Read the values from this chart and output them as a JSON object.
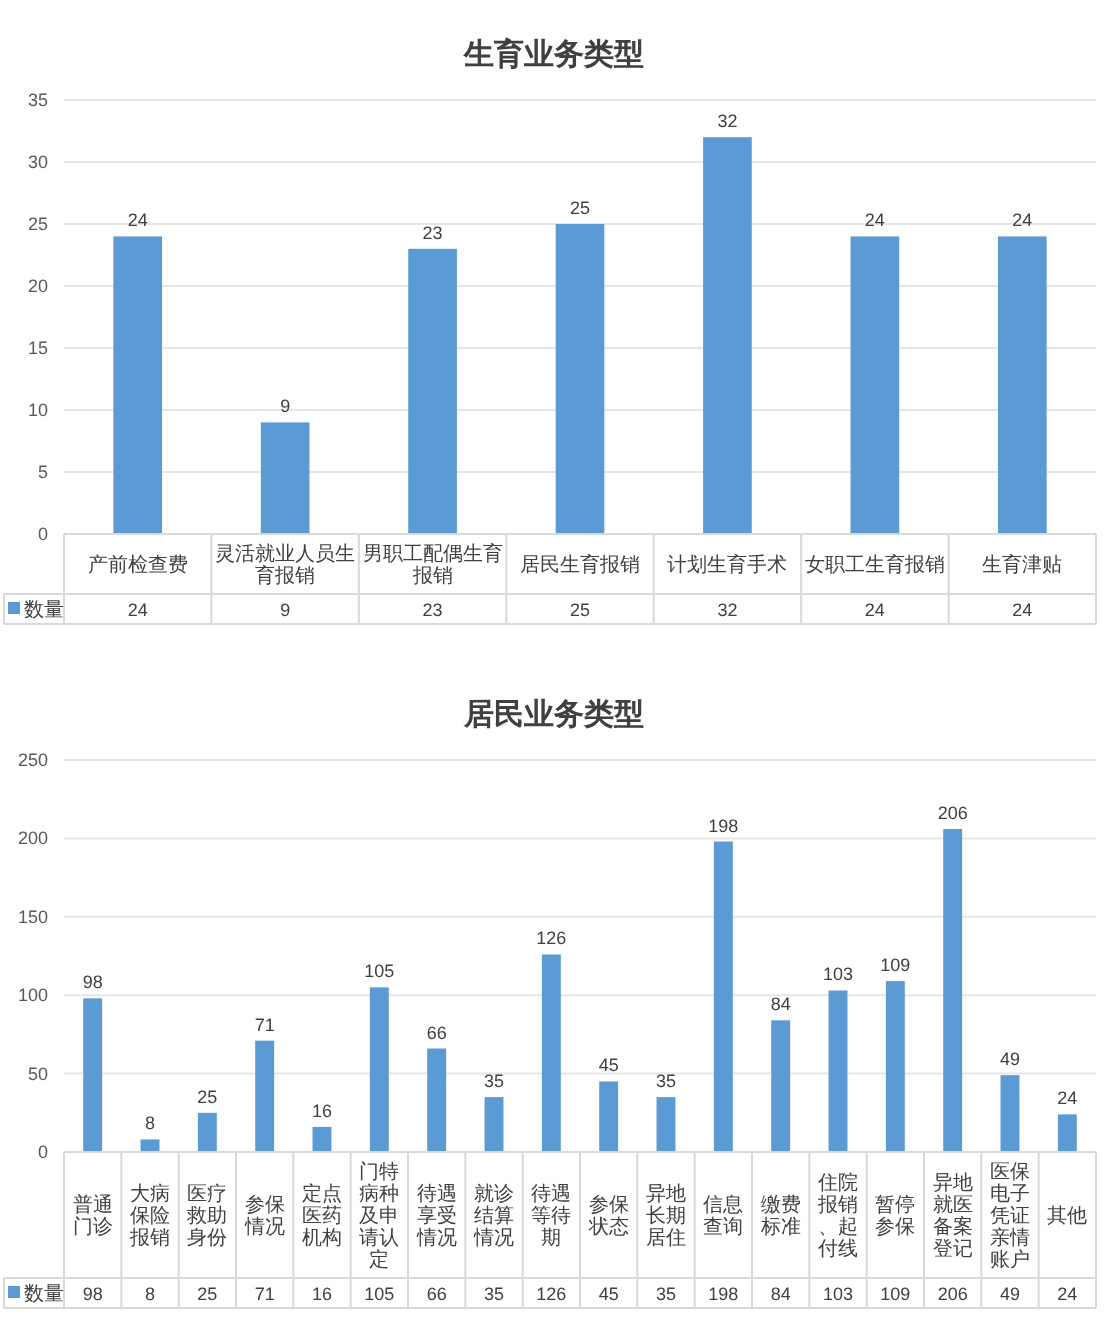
{
  "chart_data": [
    {
      "type": "bar",
      "title": "生育业务类型",
      "categories": [
        "产前检查费",
        "灵活就业人员生育报销",
        "男职工配偶生育报销",
        "居民生育报销",
        "计划生育手术",
        "女职工生育报销",
        "生育津贴"
      ],
      "series": [
        {
          "name": "数量",
          "color": "#5b9bd5",
          "values": [
            24,
            9,
            23,
            25,
            32,
            24,
            24
          ],
          "value_labels": [
            "24",
            "9",
            "23",
            "25",
            "32",
            "24",
            "24"
          ]
        }
      ],
      "ylim": [
        0,
        35
      ],
      "yticks": [
        0,
        5,
        10,
        15,
        20,
        25,
        30,
        35
      ],
      "grid": "y",
      "data_labels": true,
      "legend": "bottom"
    },
    {
      "type": "bar",
      "title": "居民业务类型",
      "categories": [
        "普通门诊",
        "大病保险报销",
        "医疗救助身份",
        "参保情况",
        "定点医药机构",
        "门特病种及申请认定",
        "待遇享受情况",
        "就诊结算情况",
        "待遇等待期",
        "参保状态",
        "异地长期居住",
        "信息查询",
        "缴费标准",
        "住院报销、起付线",
        "暂停参保",
        "异地就医备案登记",
        "医保电子凭证亲情账户",
        "其他"
      ],
      "series": [
        {
          "name": "数量",
          "color": "#5b9bd5",
          "values": [
            98,
            8,
            25,
            71,
            16,
            105,
            66,
            35,
            126,
            45,
            35,
            198,
            84,
            103,
            109,
            206,
            49,
            24
          ],
          "value_labels": [
            "98",
            "8",
            "25",
            "71",
            "16",
            "105",
            "66",
            "35",
            "126",
            "45",
            "35",
            "198",
            "84",
            "103",
            "109",
            "206",
            "49",
            "24"
          ]
        }
      ],
      "ylim": [
        0,
        250
      ],
      "yticks": [
        0,
        50,
        100,
        150,
        200,
        250
      ],
      "grid": "y",
      "data_labels": true,
      "legend": "bottom"
    }
  ]
}
